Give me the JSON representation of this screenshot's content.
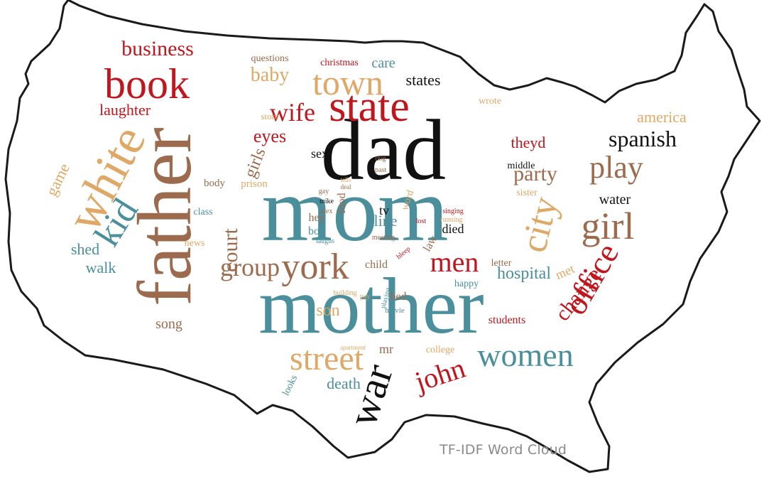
{
  "caption": "TF-IDF Word Cloud",
  "palette": {
    "teal": "#4a8f9b",
    "black": "#111111",
    "brown": "#9c6a4c",
    "red": "#c0161d",
    "tan": "#e0a866",
    "outline": "#1a1a1a"
  },
  "map_shape": "contiguous-united-states-outline",
  "words": [
    {
      "text": "mom",
      "color": "teal"
    },
    {
      "text": "mother",
      "color": "teal"
    },
    {
      "text": "dad",
      "color": "black"
    },
    {
      "text": "father",
      "color": "brown"
    },
    {
      "text": "white",
      "color": "tan"
    },
    {
      "text": "state",
      "color": "red"
    },
    {
      "text": "book",
      "color": "red"
    },
    {
      "text": "town",
      "color": "tan"
    },
    {
      "text": "city",
      "color": "tan"
    },
    {
      "text": "girl",
      "color": "brown"
    },
    {
      "text": "play",
      "color": "brown"
    },
    {
      "text": "york",
      "color": "brown"
    },
    {
      "text": "war",
      "color": "black"
    },
    {
      "text": "street",
      "color": "tan"
    },
    {
      "text": "women",
      "color": "teal"
    },
    {
      "text": "office",
      "color": "red"
    },
    {
      "text": "kid",
      "color": "teal"
    },
    {
      "text": "group",
      "color": "brown"
    },
    {
      "text": "men",
      "color": "red"
    },
    {
      "text": "john",
      "color": "red"
    },
    {
      "text": "wife",
      "color": "red"
    },
    {
      "text": "business",
      "color": "red"
    },
    {
      "text": "change",
      "color": "red"
    },
    {
      "text": "court",
      "color": "brown"
    },
    {
      "text": "spanish",
      "color": "black"
    },
    {
      "text": "party",
      "color": "brown"
    },
    {
      "text": "hospital",
      "color": "teal"
    },
    {
      "text": "baby",
      "color": "tan"
    },
    {
      "text": "death",
      "color": "teal"
    },
    {
      "text": "laughter",
      "color": "red"
    },
    {
      "text": "girls",
      "color": "brown"
    },
    {
      "text": "game",
      "color": "tan"
    },
    {
      "text": "eyes",
      "color": "red"
    },
    {
      "text": "son",
      "color": "tan"
    },
    {
      "text": "walk",
      "color": "teal"
    },
    {
      "text": "shed",
      "color": "teal"
    },
    {
      "text": "america",
      "color": "tan"
    },
    {
      "text": "line",
      "color": "teal"
    },
    {
      "text": "care",
      "color": "teal"
    },
    {
      "text": "states",
      "color": "black"
    },
    {
      "text": "theyd",
      "color": "red"
    },
    {
      "text": "water",
      "color": "black"
    },
    {
      "text": "song",
      "color": "brown"
    },
    {
      "text": "met",
      "color": "tan"
    },
    {
      "text": "sex",
      "color": "black"
    },
    {
      "text": "tv",
      "color": "black"
    },
    {
      "text": "died",
      "color": "black"
    },
    {
      "text": "boy",
      "color": "teal"
    },
    {
      "text": "hey",
      "color": "brown"
    },
    {
      "text": "bed",
      "color": "brown"
    },
    {
      "text": "child",
      "color": "brown"
    },
    {
      "text": "mr",
      "color": "brown"
    },
    {
      "text": "students",
      "color": "red"
    },
    {
      "text": "questions",
      "color": "brown"
    },
    {
      "text": "christmas",
      "color": "red"
    },
    {
      "text": "body",
      "color": "brown"
    },
    {
      "text": "prison",
      "color": "tan"
    },
    {
      "text": "class",
      "color": "teal"
    },
    {
      "text": "news",
      "color": "tan"
    },
    {
      "text": "food",
      "color": "brown"
    },
    {
      "text": "law",
      "color": "brown"
    },
    {
      "text": "happy",
      "color": "teal"
    },
    {
      "text": "letter",
      "color": "brown"
    },
    {
      "text": "college",
      "color": "tan"
    },
    {
      "text": "looks",
      "color": "teal"
    },
    {
      "text": "middle",
      "color": "black"
    },
    {
      "text": "sister",
      "color": "tan"
    },
    {
      "text": "wrote",
      "color": "tan"
    },
    {
      "text": "store",
      "color": "tan"
    },
    {
      "text": "word",
      "color": "tan"
    },
    {
      "text": "movie",
      "color": "teal"
    },
    {
      "text": "playing",
      "color": "teal"
    },
    {
      "text": "building",
      "color": "tan"
    },
    {
      "text": "dog",
      "color": "brown"
    },
    {
      "text": "past",
      "color": "brown"
    },
    {
      "text": "gay",
      "color": "brown"
    },
    {
      "text": "mike",
      "color": "black"
    },
    {
      "text": "alex",
      "color": "brown"
    },
    {
      "text": "laughs",
      "color": "teal"
    },
    {
      "text": "meeting",
      "color": "brown"
    },
    {
      "text": "lost",
      "color": "red"
    },
    {
      "text": "singing",
      "color": "red"
    },
    {
      "text": "running",
      "color": "tan"
    },
    {
      "text": "bleep",
      "color": "red"
    },
    {
      "text": "pay",
      "color": "tan"
    },
    {
      "text": "apartment",
      "color": "tan"
    },
    {
      "text": "tells",
      "color": "tan"
    },
    {
      "text": "deal",
      "color": "brown"
    }
  ]
}
